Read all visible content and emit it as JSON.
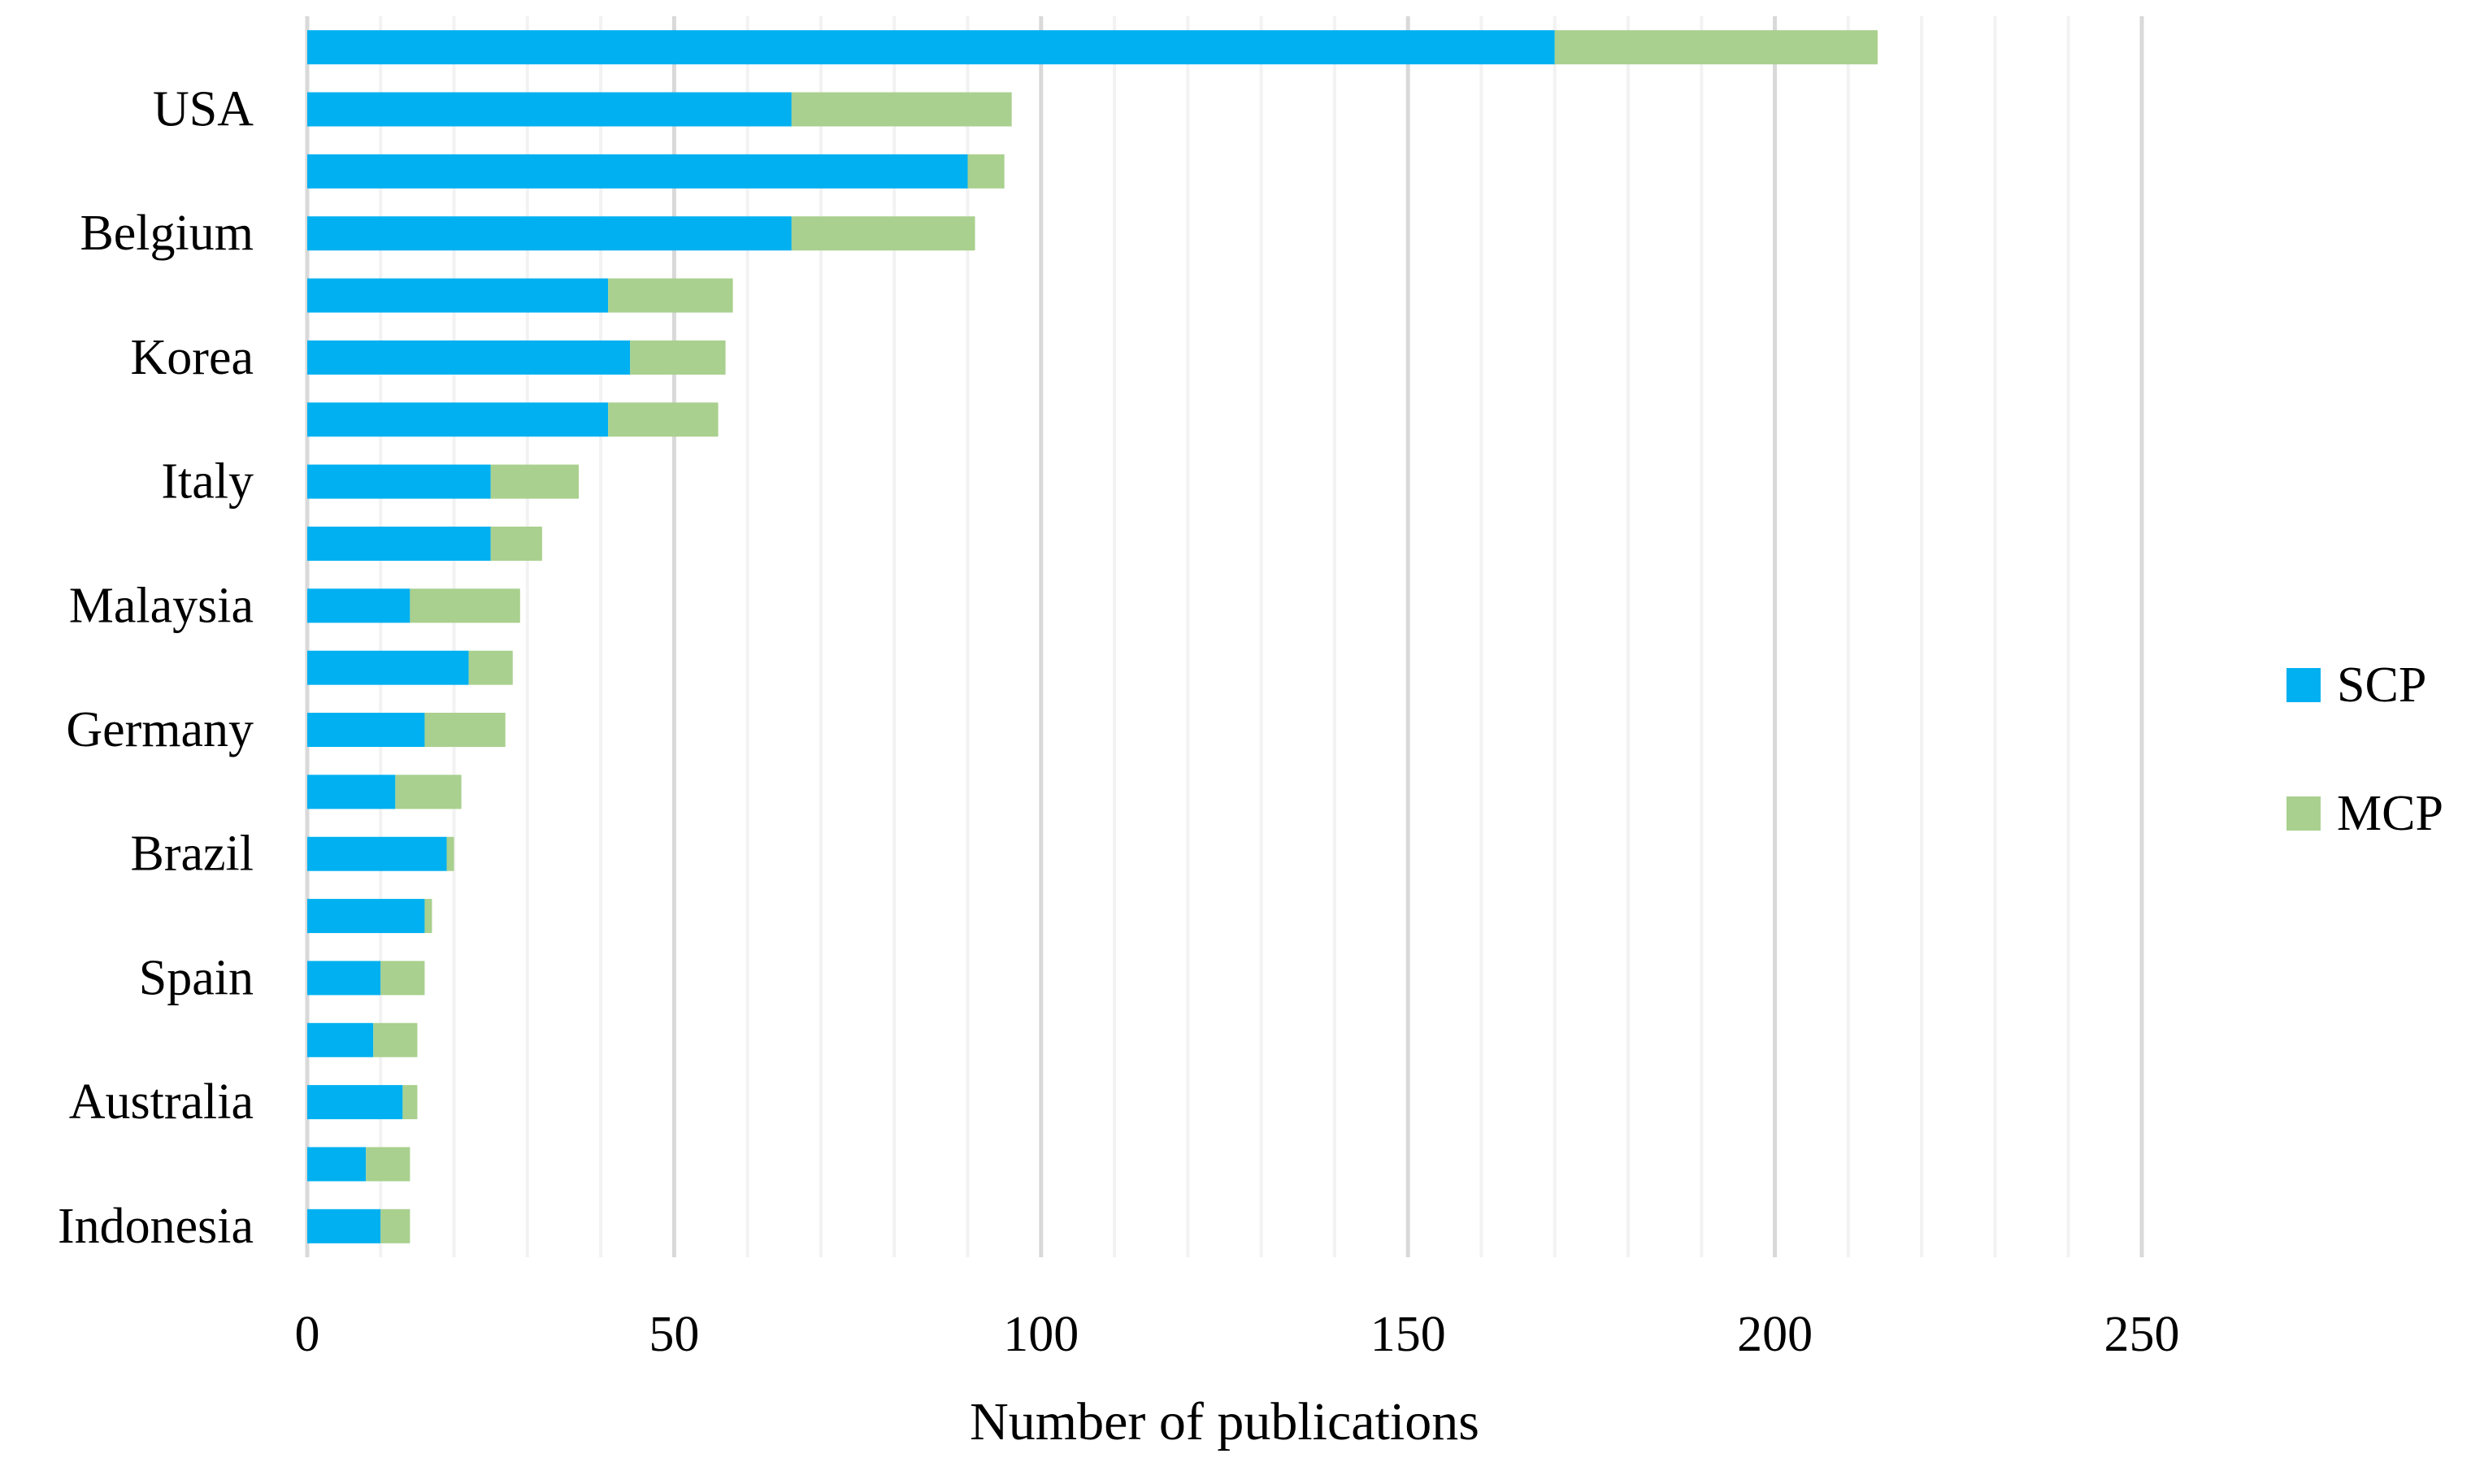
{
  "chart_data": {
    "type": "bar",
    "orientation": "horizontal",
    "stacked": true,
    "title": "",
    "xlabel": "Number of publications",
    "ylabel": "",
    "xlim": [
      0,
      250
    ],
    "x_ticks": [
      0,
      50,
      100,
      150,
      200,
      250
    ],
    "minor_grid_step": 10,
    "major_grid_step": 50,
    "grid": true,
    "legend_position": "right",
    "categories": [
      "",
      "USA",
      "",
      "Belgium",
      "",
      "Korea",
      "",
      "Italy",
      "",
      "Malaysia",
      "",
      "Germany",
      "",
      "Brazil",
      "",
      "Spain",
      "",
      "Australia",
      "",
      "Indonesia"
    ],
    "series": [
      {
        "name": "SCP",
        "color": "#00B0F0",
        "values": [
          170,
          66,
          90,
          66,
          41,
          44,
          41,
          25,
          25,
          14,
          22,
          16,
          12,
          19,
          16,
          10,
          9,
          13,
          8,
          10
        ]
      },
      {
        "name": "MCP",
        "color": "#A9D08E",
        "values": [
          44,
          30,
          5,
          25,
          17,
          13,
          15,
          12,
          7,
          15,
          6,
          11,
          9,
          1,
          1,
          6,
          6,
          2,
          6,
          4
        ]
      }
    ]
  },
  "legend": {
    "items": [
      {
        "label": "SCP",
        "color": "#00B0F0"
      },
      {
        "label": "MCP",
        "color": "#A9D08E"
      }
    ]
  },
  "style_colors": {
    "minor_gridline": "#F2F2F2",
    "major_gridline": "#D9D9D9",
    "axis_line": "#D9D9D9",
    "text": "#000000",
    "background": "#FFFFFF"
  }
}
